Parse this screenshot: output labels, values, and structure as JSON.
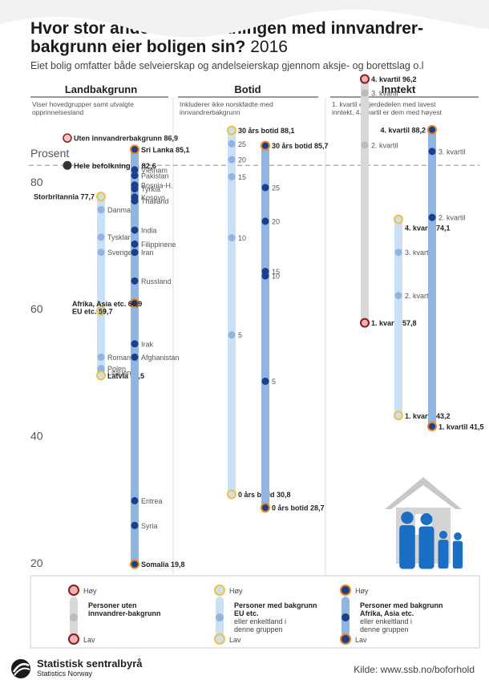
{
  "title": "Hvor stor andel av befolkningen med innvandrer-bakgrunn eier boligen sin?",
  "title_year": "2016",
  "subtitle": "Eiet bolig omfatter både selveierskap og andelseierskap gjennom aksje- og borettslag o.l",
  "source": "Kilde: www.ssb.no/boforhold",
  "logo": {
    "name": "Statistisk sentralbyrå",
    "name_en": "Statistics Norway"
  },
  "colors": {
    "dark_blue": "#1c3f8c",
    "mid_blue": "#8fb5e0",
    "light_blue": "#c9e0f5",
    "pale_blue": "#e3eff9",
    "grey": "#d8d8d8",
    "grey_dot": "#bbbbbb",
    "dark_red": "#8b1a1a",
    "orange": "#e8821e",
    "yellow": "#efc33c",
    "pink": "#e8b4b4"
  },
  "chart_data": {
    "type": "dot-range",
    "ylabel": "Prosent",
    "ylim": [
      20,
      96
    ],
    "yticks": [
      20,
      40,
      60,
      80
    ],
    "reference": {
      "label": "Hele befolkningen",
      "value": 82.6,
      "label_text": "Hele befolkningen 82,6"
    },
    "panels": [
      {
        "name": "Landbakgrunn",
        "note": "Viser hovedgrupper samt utvalgte opprinnelsesland",
        "series": [
          {
            "group": "none",
            "points": [
              {
                "label": "Uten innvandrerbakgrunn 86,9",
                "value": 86.9,
                "role": "single"
              }
            ]
          },
          {
            "group": "eu",
            "range": [
              49.5,
              77.7
            ],
            "points": [
              {
                "label": "Storbritannia 77,7",
                "value": 77.7,
                "role": "high"
              },
              {
                "label": "Danmark",
                "value": 75.6,
                "role": "mid"
              },
              {
                "label": "Tyskland",
                "value": 71.3,
                "role": "mid"
              },
              {
                "label": "Sverige",
                "value": 68.9,
                "role": "mid"
              },
              {
                "label": "EU etc. 59,7",
                "value": 59.7,
                "role": "group"
              },
              {
                "label": "Romania",
                "value": 52.4,
                "role": "mid"
              },
              {
                "label": "Polen",
                "value": 50.6,
                "role": "mid"
              },
              {
                "label": "Litauen",
                "value": 50.0,
                "role": "mid"
              },
              {
                "label": "Latvia 49,5",
                "value": 49.5,
                "role": "low"
              }
            ]
          },
          {
            "group": "asia",
            "range": [
              19.8,
              85.1
            ],
            "points": [
              {
                "label": "Sri Lanka 85,1",
                "value": 85.1,
                "role": "high"
              },
              {
                "label": "Vietnam",
                "value": 81.9,
                "role": "mid"
              },
              {
                "label": "Pakistan",
                "value": 81.0,
                "role": "mid"
              },
              {
                "label": "Bosnia-H.",
                "value": 79.5,
                "role": "mid"
              },
              {
                "label": "Tyrkia",
                "value": 78.9,
                "role": "mid"
              },
              {
                "label": "Kosovo",
                "value": 77.6,
                "role": "mid"
              },
              {
                "label": "Thailand",
                "value": 77.0,
                "role": "mid"
              },
              {
                "label": "India",
                "value": 72.4,
                "role": "mid"
              },
              {
                "label": "Filippinene",
                "value": 70.2,
                "role": "mid"
              },
              {
                "label": "Iran",
                "value": 68.9,
                "role": "mid"
              },
              {
                "label": "Russland",
                "value": 64.4,
                "role": "mid"
              },
              {
                "label": "Afrika, Asia etc. 60,9",
                "value": 60.9,
                "role": "group"
              },
              {
                "label": "Irak",
                "value": 54.5,
                "role": "mid"
              },
              {
                "label": "Afghanistan",
                "value": 52.4,
                "role": "mid"
              },
              {
                "label": "Eritrea",
                "value": 29.8,
                "role": "mid"
              },
              {
                "label": "Syria",
                "value": 25.9,
                "role": "mid"
              },
              {
                "label": "Somalia 19,8",
                "value": 19.8,
                "role": "low"
              }
            ]
          }
        ]
      },
      {
        "name": "Botid",
        "note": "Inkluderer ikke norskfødte med innvandrerbakgrunn",
        "series": [
          {
            "group": "eu",
            "range": [
              30.8,
              88.1
            ],
            "points": [
              {
                "label": "30 års botid 88,1",
                "value": 88.1,
                "role": "high"
              },
              {
                "label": "25",
                "value": 86.0,
                "role": "mid"
              },
              {
                "label": "20",
                "value": 83.5,
                "role": "mid"
              },
              {
                "label": "15",
                "value": 80.8,
                "role": "mid"
              },
              {
                "label": "10",
                "value": 71.2,
                "role": "mid"
              },
              {
                "label": "5",
                "value": 55.9,
                "role": "mid"
              },
              {
                "label": "0 års botid 30,8",
                "value": 30.8,
                "role": "low"
              }
            ]
          },
          {
            "group": "asia",
            "range": [
              28.7,
              85.7
            ],
            "points": [
              {
                "label": "30 års botid 85,7",
                "value": 85.7,
                "role": "high"
              },
              {
                "label": "25",
                "value": 79.1,
                "role": "mid"
              },
              {
                "label": "20",
                "value": 73.8,
                "role": "mid"
              },
              {
                "label": "15",
                "value": 65.9,
                "role": "mid"
              },
              {
                "label": "10",
                "value": 65.2,
                "role": "mid"
              },
              {
                "label": "5",
                "value": 48.6,
                "role": "mid"
              },
              {
                "label": "0 års botid 28,7",
                "value": 28.7,
                "role": "low"
              }
            ]
          }
        ]
      },
      {
        "name": "Inntekt",
        "note": "1. kvartil er fjerdedelen med lavest inntekt, 4. kvartil er dem med høyest",
        "series": [
          {
            "group": "none",
            "range": [
              57.8,
              96.2
            ],
            "points": [
              {
                "label": "4. kvartil 96,2",
                "value": 96.2,
                "role": "high"
              },
              {
                "label": "3. kvartil",
                "value": 94.0,
                "role": "mid"
              },
              {
                "label": "2. kvartil",
                "value": 85.8,
                "role": "mid"
              },
              {
                "label": "1. kvartil 57,8",
                "value": 57.8,
                "role": "low"
              }
            ]
          },
          {
            "group": "eu",
            "range": [
              43.2,
              74.1
            ],
            "points": [
              {
                "label": "4. kvartil 74,1",
                "value": 74.1,
                "role": "high"
              },
              {
                "label": "3. kvartil",
                "value": 68.9,
                "role": "mid"
              },
              {
                "label": "2. kvartil",
                "value": 62.1,
                "role": "mid"
              },
              {
                "label": "1. kvartil 43,2",
                "value": 43.2,
                "role": "low"
              }
            ]
          },
          {
            "group": "asia",
            "range": [
              41.5,
              88.2
            ],
            "points": [
              {
                "label": "4. kvartil 88,2",
                "value": 88.2,
                "role": "high"
              },
              {
                "label": "3. kvartil",
                "value": 84.8,
                "role": "mid"
              },
              {
                "label": "2. kvartil",
                "value": 74.4,
                "role": "mid"
              },
              {
                "label": "1. kvartil 41,5",
                "value": 41.5,
                "role": "low"
              }
            ]
          }
        ]
      }
    ],
    "legend": [
      {
        "group": "none",
        "high": "Høy",
        "low": "Lav",
        "title": "Personer uten innvandrer-bakgrunn",
        "desc": ""
      },
      {
        "group": "eu",
        "high": "Høy",
        "low": "Lav",
        "title": "Personer med bakgrunn EU etc.",
        "desc": "eller enkeltland i denne gruppen"
      },
      {
        "group": "asia",
        "high": "Høy",
        "low": "Lav",
        "title": "Personer med bakgrunn Afrika, Asia etc.",
        "desc": "eller enkeltland i denne gruppen"
      }
    ]
  }
}
